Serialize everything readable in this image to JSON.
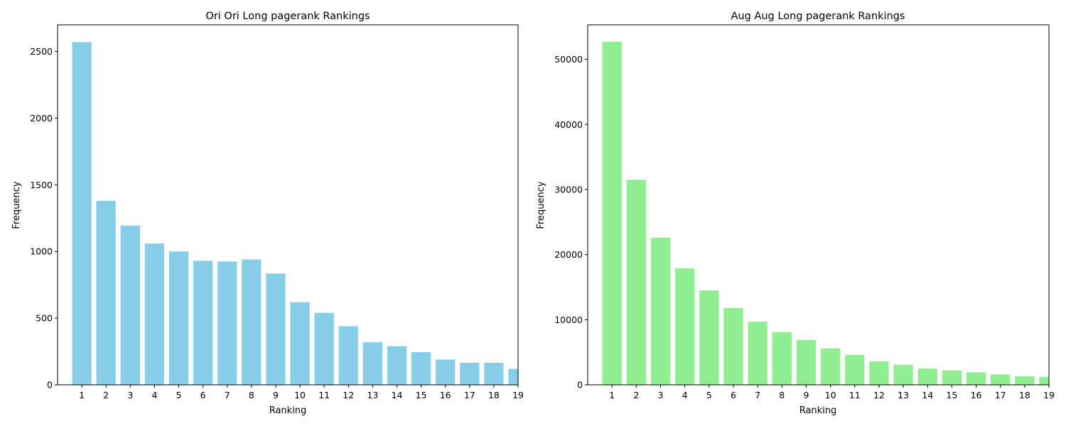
{
  "colors": {
    "left_bar": "#87CEEB",
    "right_bar": "#90EE90",
    "axes": "#000000"
  },
  "chart_data": [
    {
      "type": "bar",
      "title": "Ori Ori Long pagerank Rankings",
      "xlabel": "Ranking",
      "ylabel": "Frequency",
      "categories": [
        "1",
        "2",
        "3",
        "4",
        "5",
        "6",
        "7",
        "8",
        "9",
        "10",
        "11",
        "12",
        "13",
        "14",
        "15",
        "16",
        "17",
        "18",
        "19"
      ],
      "values": [
        2570,
        1380,
        1195,
        1060,
        1000,
        930,
        925,
        940,
        835,
        620,
        540,
        440,
        320,
        290,
        245,
        190,
        165,
        165,
        120
      ],
      "xlim": [
        0,
        19
      ],
      "ylim": [
        0,
        2700
      ],
      "yticks": [
        0,
        500,
        1000,
        1500,
        2000,
        2500
      ],
      "grid": false,
      "color": "#87CEEB"
    },
    {
      "type": "bar",
      "title": "Aug Aug Long pagerank Rankings",
      "xlabel": "Ranking",
      "ylabel": "Frequency",
      "categories": [
        "1",
        "2",
        "3",
        "4",
        "5",
        "6",
        "7",
        "8",
        "9",
        "10",
        "11",
        "12",
        "13",
        "14",
        "15",
        "16",
        "17",
        "18",
        "19"
      ],
      "values": [
        52700,
        31500,
        22600,
        17900,
        14500,
        11800,
        9700,
        8100,
        6900,
        5600,
        4600,
        3600,
        3100,
        2500,
        2200,
        1900,
        1600,
        1300,
        1200
      ],
      "xlim": [
        0,
        19
      ],
      "ylim": [
        0,
        55300
      ],
      "yticks": [
        0,
        10000,
        20000,
        30000,
        40000,
        50000
      ],
      "grid": false,
      "color": "#90EE90"
    }
  ]
}
